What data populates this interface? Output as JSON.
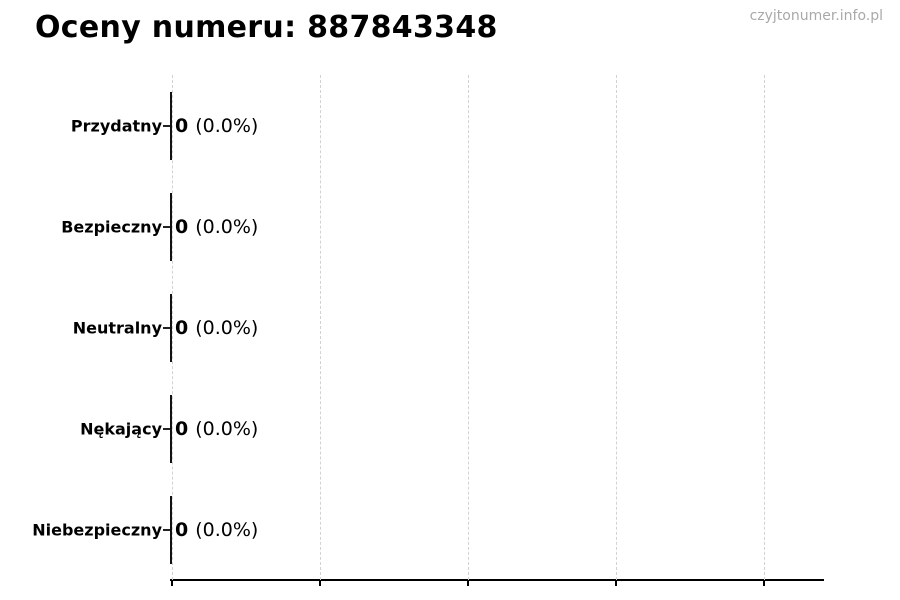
{
  "page": {
    "title": "Oceny numeru: 887843348",
    "watermark": "czyjtonumer.info.pl"
  },
  "chart_data": {
    "type": "bar",
    "orientation": "horizontal",
    "title": "Oceny numeru: 887843348",
    "categories": [
      "Przydatny",
      "Bezpieczny",
      "Neutralny",
      "Nękający",
      "Niebezpieczny"
    ],
    "values": [
      0,
      0,
      0,
      0,
      0
    ],
    "percentages": [
      "(0.0%)",
      "(0.0%)",
      "(0.0%)",
      "(0.0%)",
      "(0.0%)"
    ],
    "value_labels": [
      "0 (0.0%)",
      "0 (0.0%)",
      "0 (0.0%)",
      "0 (0.0%)",
      "0 (0.0%)"
    ],
    "xlabel": "",
    "ylabel": "",
    "xlim": [
      0,
      4.4
    ],
    "x_gridline_count": 5,
    "x_tick_labels": [],
    "grid": "vertical-dashed",
    "legend_position": "none",
    "colors": {
      "bar_edge": "#121212",
      "axis": "#000000",
      "gridline": "#d2d2d2",
      "text": "#000000",
      "watermark": "#a9a9a9"
    }
  }
}
